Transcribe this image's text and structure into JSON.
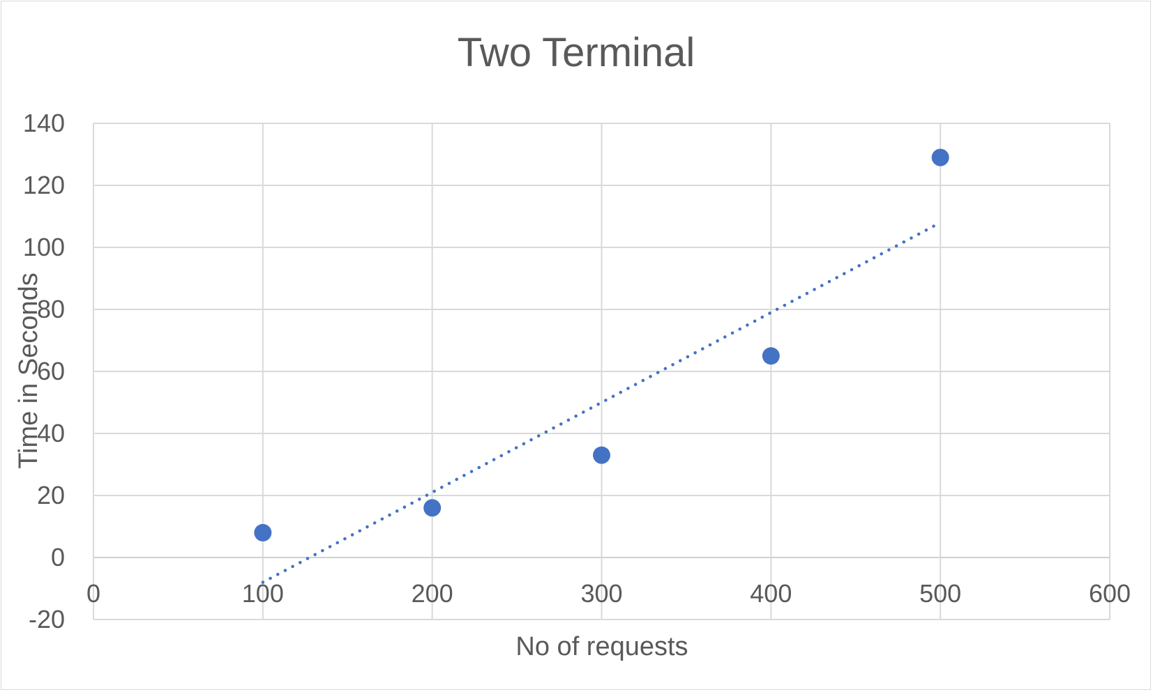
{
  "chart_data": {
    "type": "scatter",
    "title": "Two Terminal",
    "xlabel": "No of requests",
    "ylabel": "Time in Seconds",
    "xlim": [
      0,
      600
    ],
    "ylim": [
      -20,
      140
    ],
    "x_ticks": [
      0,
      100,
      200,
      300,
      400,
      500,
      600
    ],
    "y_ticks": [
      -20,
      0,
      20,
      40,
      60,
      80,
      100,
      120,
      140
    ],
    "grid": true,
    "legend": "none",
    "series": [
      {
        "points": [
          {
            "x": 100,
            "y": 8
          },
          {
            "x": 200,
            "y": 16
          },
          {
            "x": 300,
            "y": 33
          },
          {
            "x": 400,
            "y": 65
          },
          {
            "x": 500,
            "y": 129
          }
        ],
        "color": "#4472c4"
      }
    ],
    "trendline": {
      "type": "linear",
      "style": "dotted",
      "color": "#4472c4",
      "from": {
        "x": 100,
        "y": -8
      },
      "to": {
        "x": 500,
        "y": 108
      }
    }
  }
}
